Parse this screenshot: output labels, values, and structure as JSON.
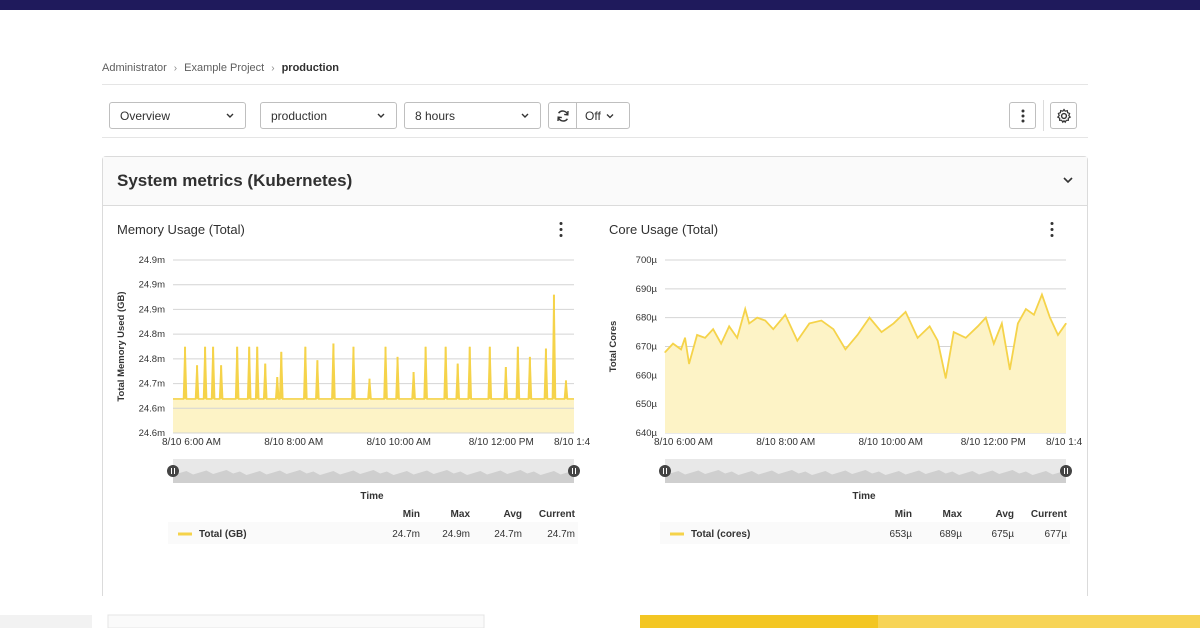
{
  "breadcrumb": {
    "items": [
      "Administrator",
      "Example Project"
    ],
    "current": "production",
    "separator": "›"
  },
  "toolbar": {
    "dashboard_select": "Overview",
    "environment_select": "production",
    "time_range_select": "8 hours",
    "refresh_rate": "Off",
    "more_actions_icon": "kebab-icon",
    "settings_icon": "gear-icon"
  },
  "panel": {
    "title": "System metrics (Kubernetes)"
  },
  "colors": {
    "series": "#f5d34a",
    "series_fill": "#fdf3c6",
    "topbar": "#1f1a5c"
  },
  "charts": [
    {
      "title": "Memory Usage (Total)",
      "ylabel": "Total Memory Used (GB)",
      "xlabel": "Time",
      "legend_series": "Total (GB)",
      "stats_headers": [
        "Min",
        "Max",
        "Avg",
        "Current"
      ],
      "stats": [
        "24.7m",
        "24.9m",
        "24.7m",
        "24.7m"
      ]
    },
    {
      "title": "Core Usage (Total)",
      "ylabel": "Total Cores",
      "xlabel": "Time",
      "legend_series": "Total (cores)",
      "stats_headers": [
        "Min",
        "Max",
        "Avg",
        "Current"
      ],
      "stats": [
        "653µ",
        "689µ",
        "675µ",
        "677µ"
      ]
    }
  ],
  "chart_data": [
    {
      "type": "area",
      "title": "Memory Usage (Total)",
      "ylabel": "Total Memory Used (GB)",
      "xlabel": "Time",
      "x_ticks": [
        "8/10 6:00 AM",
        "8/10 8:00 AM",
        "8/10 10:00 AM",
        "8/10 12:00 PM",
        "8/10 1:4"
      ],
      "y_ticks": [
        "24.6m",
        "24.6m",
        "24.7m",
        "24.8m",
        "24.8m",
        "24.9m",
        "24.9m",
        "24.9m"
      ],
      "baseline_tick_index": 1.5,
      "spikes": [
        {
          "x": 0.03,
          "h": 3.1
        },
        {
          "x": 0.06,
          "h": 2.0
        },
        {
          "x": 0.08,
          "h": 3.1
        },
        {
          "x": 0.1,
          "h": 3.1
        },
        {
          "x": 0.12,
          "h": 2.0
        },
        {
          "x": 0.16,
          "h": 3.1
        },
        {
          "x": 0.19,
          "h": 3.1
        },
        {
          "x": 0.21,
          "h": 3.1
        },
        {
          "x": 0.23,
          "h": 2.1
        },
        {
          "x": 0.26,
          "h": 1.3
        },
        {
          "x": 0.27,
          "h": 2.8
        },
        {
          "x": 0.33,
          "h": 3.1
        },
        {
          "x": 0.36,
          "h": 2.3
        },
        {
          "x": 0.4,
          "h": 3.3
        },
        {
          "x": 0.45,
          "h": 3.1
        },
        {
          "x": 0.49,
          "h": 1.2
        },
        {
          "x": 0.53,
          "h": 3.1
        },
        {
          "x": 0.56,
          "h": 2.5
        },
        {
          "x": 0.6,
          "h": 1.6
        },
        {
          "x": 0.63,
          "h": 3.1
        },
        {
          "x": 0.68,
          "h": 3.1
        },
        {
          "x": 0.71,
          "h": 2.1
        },
        {
          "x": 0.74,
          "h": 3.1
        },
        {
          "x": 0.79,
          "h": 3.1
        },
        {
          "x": 0.83,
          "h": 1.9
        },
        {
          "x": 0.86,
          "h": 3.1
        },
        {
          "x": 0.89,
          "h": 2.5
        },
        {
          "x": 0.93,
          "h": 3.0
        },
        {
          "x": 0.95,
          "h": 6.2
        },
        {
          "x": 0.98,
          "h": 1.1
        }
      ]
    },
    {
      "type": "area",
      "title": "Core Usage (Total)",
      "ylabel": "Total Cores",
      "xlabel": "Time",
      "x_ticks": [
        "8/10 6:00 AM",
        "8/10 8:00 AM",
        "8/10 10:00 AM",
        "8/10 12:00 PM",
        "8/10 1:4"
      ],
      "y_ticks": [
        "640µ",
        "650µ",
        "660µ",
        "670µ",
        "680µ",
        "690µ",
        "700µ"
      ],
      "ylim": [
        640,
        700
      ],
      "x": [
        0.0,
        0.02,
        0.04,
        0.05,
        0.06,
        0.08,
        0.1,
        0.12,
        0.14,
        0.16,
        0.18,
        0.2,
        0.21,
        0.23,
        0.25,
        0.27,
        0.3,
        0.33,
        0.36,
        0.39,
        0.42,
        0.45,
        0.48,
        0.51,
        0.54,
        0.57,
        0.6,
        0.63,
        0.66,
        0.68,
        0.7,
        0.72,
        0.75,
        0.78,
        0.8,
        0.82,
        0.84,
        0.86,
        0.88,
        0.9,
        0.92,
        0.94,
        0.96,
        0.98,
        1.0
      ],
      "values": [
        668,
        671,
        669,
        673,
        664,
        674,
        673,
        676,
        671,
        677,
        673,
        683,
        678,
        680,
        679,
        676,
        681,
        672,
        678,
        679,
        676,
        669,
        674,
        680,
        675,
        678,
        682,
        673,
        677,
        672,
        659,
        675,
        673,
        677,
        680,
        671,
        678,
        662,
        678,
        683,
        681,
        688,
        680,
        674,
        678
      ]
    }
  ]
}
